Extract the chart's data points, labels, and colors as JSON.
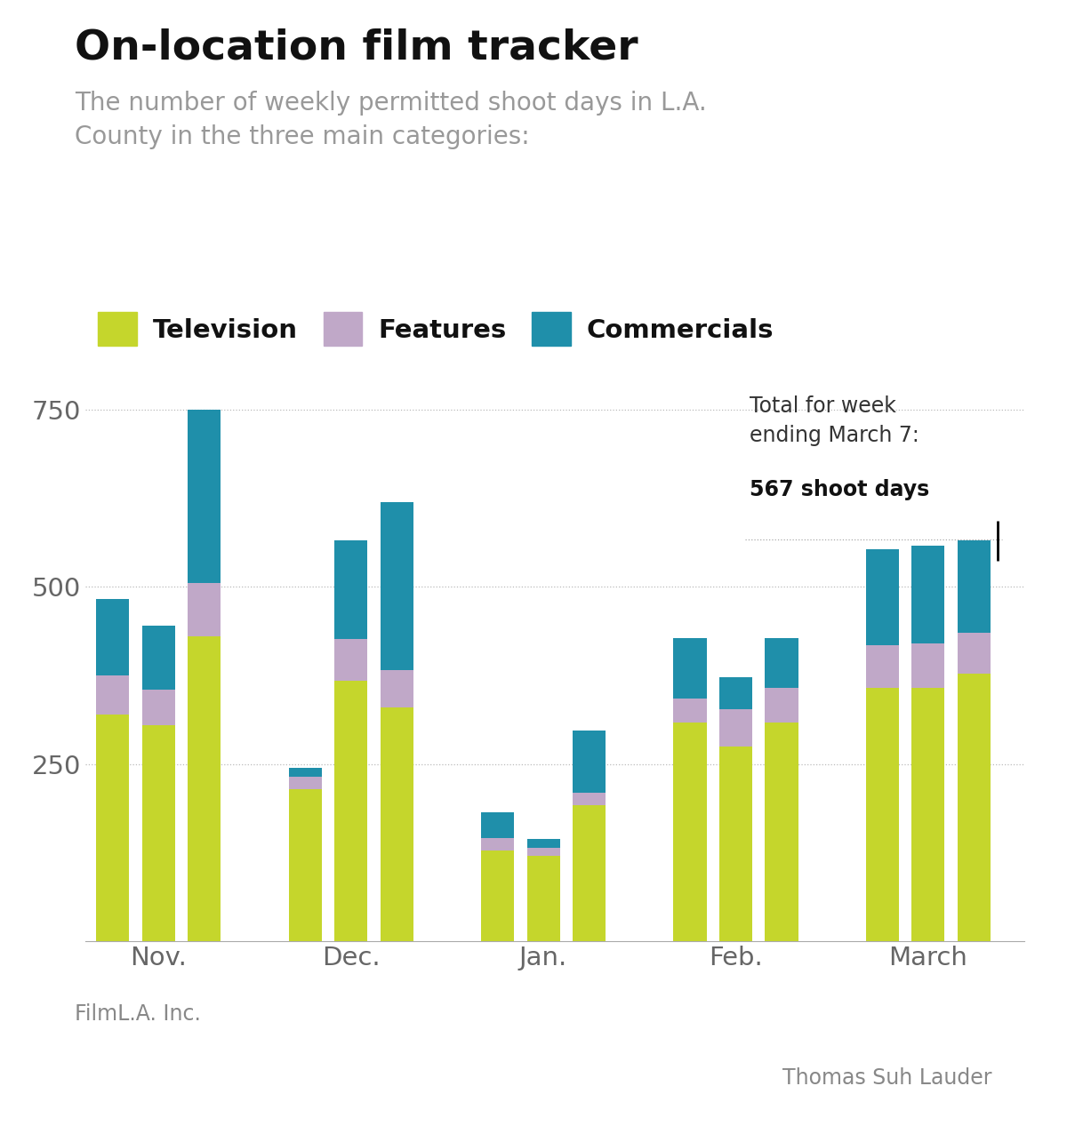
{
  "title": "On-location film tracker",
  "subtitle": "The number of weekly permitted shoot days in L.A.\nCounty in the three main categories:",
  "categories": [
    "Nov.",
    "Dec.",
    "Jan.",
    "Feb.",
    "March"
  ],
  "television": [
    320,
    305,
    430,
    215,
    368,
    330,
    128,
    120,
    192,
    308,
    275,
    308,
    358,
    358,
    378
  ],
  "features": [
    55,
    50,
    75,
    17,
    58,
    52,
    17,
    12,
    17,
    35,
    52,
    50,
    60,
    62,
    57
  ],
  "commercials": [
    108,
    90,
    245,
    13,
    140,
    237,
    37,
    12,
    88,
    85,
    45,
    70,
    135,
    138,
    130
  ],
  "colors": {
    "television": "#c5d62c",
    "features": "#c0a8c8",
    "commercials": "#1f8faa"
  },
  "legend_labels": [
    "Television",
    "Features",
    "Commercials"
  ],
  "source": "FilmL.A. Inc.",
  "author": "Thomas Suh Lauder",
  "ylim": [
    0,
    800
  ],
  "yticks": [
    250,
    500,
    750
  ],
  "background_color": "#ffffff",
  "title_fontsize": 34,
  "subtitle_fontsize": 20,
  "axis_fontsize": 21,
  "legend_fontsize": 21,
  "annotation_fontsize": 17,
  "bar_width": 0.72
}
